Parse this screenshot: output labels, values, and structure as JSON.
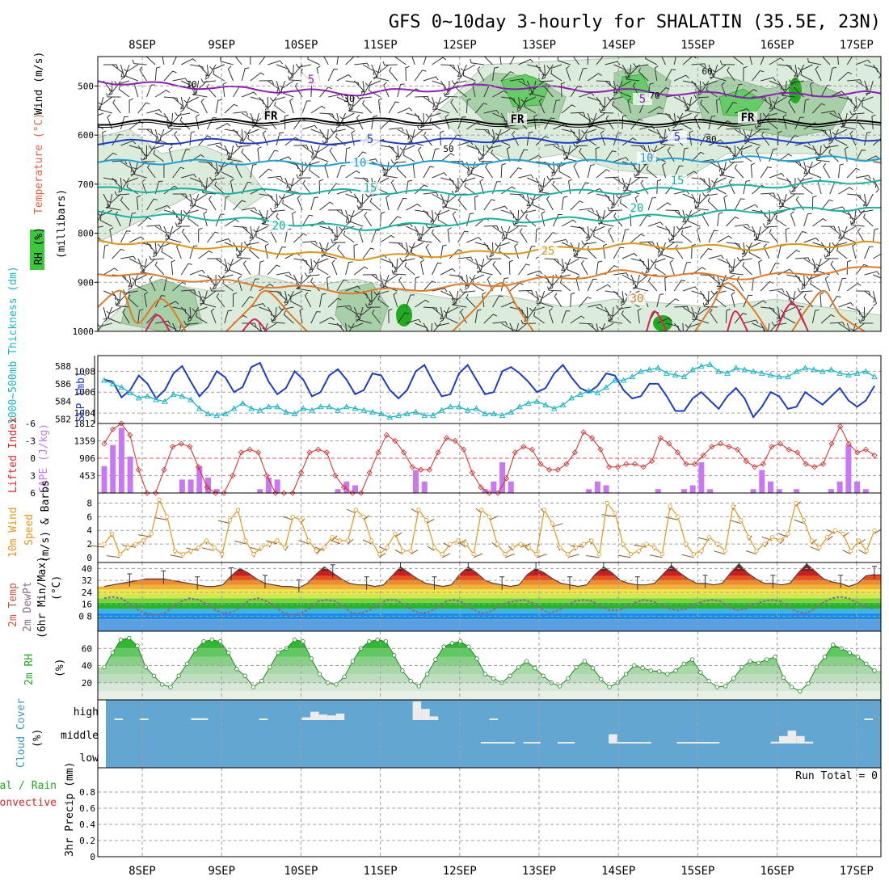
{
  "title": "GFS 0~10day 3-hourly for SHALATIN (35.5E, 23N)",
  "days": [
    "8SEP",
    "9SEP",
    "10SEP",
    "11SEP",
    "12SEP",
    "13SEP",
    "14SEP",
    "15SEP",
    "16SEP",
    "17SEP"
  ],
  "colors": {
    "rh_green": "#3cc83c",
    "temp_purple": "#8c1eb4",
    "temp_blue": "#1e3cc8",
    "temp_cyan": "#1ea0d2",
    "temp_teal": "#14b4a0",
    "temp_orange": "#dc9614",
    "cloud_bg": "#64a6d2",
    "slp": "#1e3cc8",
    "thick": "#1eb4c8",
    "li": "#dc2828",
    "cape": "#c878f0",
    "wind": "#e6961e"
  },
  "chart_data": [
    {
      "type": "contour",
      "id": "upper_air",
      "ylabel_parts": [
        "Wind (m/s)",
        "Temperature (°C)",
        "RH (%)",
        "(millibars)"
      ],
      "yticks": [
        500,
        600,
        700,
        800,
        900,
        1000
      ],
      "ylim": [
        440,
        1000
      ],
      "temperature_contours": [
        {
          "value": 5,
          "label": "5",
          "levels_mb": [
            490,
            505,
            515,
            500,
            510,
            520,
            515
          ]
        },
        {
          "value": 0,
          "label": "FR",
          "levels_mb": [
            575,
            572,
            570,
            573,
            575,
            572,
            575
          ]
        },
        {
          "value": 5,
          "label": "5",
          "levels_mb": [
            615,
            612,
            615,
            610,
            612,
            612,
            610
          ]
        },
        {
          "value": 10,
          "label": "10",
          "levels_mb": [
            655,
            655,
            660,
            655,
            655,
            648,
            648
          ]
        },
        {
          "value": 15,
          "label": "15",
          "levels_mb": [
            710,
            715,
            715,
            718,
            715,
            705,
            692
          ]
        },
        {
          "value": 20,
          "label": "20",
          "levels_mb": [
            760,
            770,
            790,
            775,
            770,
            755,
            748
          ]
        },
        {
          "value": 25,
          "label": "25",
          "levels_mb": [
            815,
            830,
            850,
            840,
            825,
            830,
            820
          ]
        },
        {
          "value": 30,
          "label": "30",
          "levels_mb": [
            880,
            900,
            920,
            905,
            880,
            890,
            870
          ]
        }
      ],
      "rh_contour_labels": [
        "10",
        "30",
        "50",
        "60",
        "70",
        "80"
      ],
      "annotations": [
        "5",
        "FR",
        "5",
        "10",
        "15",
        "20",
        "25",
        "30"
      ]
    },
    {
      "type": "line",
      "id": "slp_thickness",
      "left_label": "1000~500mb Thickness (dm)",
      "right_label": "SLP (mb)",
      "left_ticks": [
        "588",
        "586",
        "584",
        "582"
      ],
      "right_ticks": [
        "1008",
        "1006",
        "1004"
      ],
      "series": [
        {
          "name": "SLP (mb)",
          "ylim": [
            1003,
            1009.5
          ],
          "values": [
            1007.2,
            1007.0,
            1005.5,
            1006.2,
            1007.6,
            1006.8,
            1005.4,
            1006.2,
            1007.8,
            1008.5,
            1007.0,
            1005.6,
            1006.5,
            1008.0,
            1007.4,
            1006.0,
            1006.5,
            1008.4,
            1008.8,
            1007.0,
            1005.8,
            1006.4,
            1008.0,
            1007.2,
            1005.6,
            1006.0,
            1007.6,
            1008.2,
            1007.2,
            1005.8,
            1006.2,
            1007.8,
            1007.6,
            1006.2,
            1005.4,
            1006.2,
            1008.0,
            1008.6,
            1007.0,
            1005.6,
            1005.8,
            1007.8,
            1008.6,
            1007.2,
            1005.8,
            1006.0,
            1008.0,
            1008.4,
            1007.8,
            1007.0,
            1006.0,
            1006.4,
            1007.8,
            1008.6,
            1007.4,
            1006.4,
            1006.0,
            1006.6,
            1007.8,
            1007.6,
            1006.2,
            1005.4,
            1005.6,
            1006.8,
            1006.8,
            1005.6,
            1004.2,
            1004.2,
            1005.4,
            1006.0,
            1005.2,
            1004.4,
            1005.6,
            1006.4,
            1005.4,
            1003.6,
            1004.6,
            1006.0,
            1005.6,
            1004.4,
            1004.6,
            1006.0,
            1005.4,
            1004.8,
            1005.6,
            1006.4,
            1005.2,
            1004.6,
            1005.2,
            1006.6
          ]
        },
        {
          "name": "1000~500mb Thickness (dm)",
          "ylim": [
            581.5,
            589.2
          ],
          "values": [
            586.4,
            586.0,
            585.6,
            585.0,
            584.4,
            584.6,
            584.2,
            584.0,
            584.8,
            584.6,
            584.2,
            583.2,
            582.6,
            582.4,
            582.6,
            583.2,
            583.8,
            583.2,
            583.0,
            583.4,
            583.4,
            582.8,
            582.6,
            583.2,
            583.0,
            583.4,
            583.4,
            583.0,
            583.4,
            583.2,
            583.0,
            582.8,
            582.6,
            582.2,
            582.4,
            582.6,
            582.8,
            582.4,
            582.4,
            583.0,
            583.4,
            583.4,
            583.0,
            583.2,
            582.6,
            582.6,
            582.4,
            582.8,
            583.4,
            583.8,
            584.0,
            583.6,
            583.2,
            583.6,
            584.4,
            584.8,
            585.2,
            585.0,
            585.6,
            586.4,
            586.4,
            586.8,
            587.4,
            587.6,
            587.8,
            587.2,
            587.0,
            586.8,
            587.6,
            588.0,
            588.2,
            587.4,
            587.2,
            587.8,
            587.6,
            587.4,
            587.2,
            587.0,
            586.8,
            586.8,
            587.4,
            587.8,
            587.6,
            587.4,
            587.6,
            587.2,
            587.0,
            587.2,
            587.4,
            586.8
          ]
        }
      ]
    },
    {
      "type": "bar+line",
      "id": "lifted_cape",
      "left_label": "Lifted Index",
      "right_label": "CAPE (J/kg)",
      "li_ticks": [
        "-6",
        "-3",
        "0",
        "3",
        "6"
      ],
      "cape_ticks": [
        "1812",
        "1359",
        "906",
        "453"
      ],
      "series": [
        {
          "name": "Lifted Index",
          "ylim": [
            6,
            -6
          ],
          "values": [
            -2.5,
            -5.0,
            -6.0,
            -4.0,
            2.0,
            6.0,
            6.0,
            2.0,
            -2.0,
            -2.5,
            -2.0,
            1.5,
            5.0,
            6.0,
            6.0,
            3.0,
            -1.0,
            -1.5,
            -1.0,
            3.0,
            6.0,
            6.0,
            6.0,
            2.5,
            -1.0,
            -1.5,
            -1.0,
            3.0,
            5.0,
            6.0,
            6.0,
            2.5,
            -1.0,
            -4.0,
            -3.0,
            -1.0,
            1.5,
            2.0,
            2.0,
            -1.0,
            -3.5,
            -3.0,
            -1.5,
            2.5,
            5.0,
            6.0,
            6.0,
            3.5,
            -1.0,
            -2.0,
            -1.5,
            1.0,
            2.0,
            2.0,
            1.0,
            -1.0,
            -4.5,
            -3.5,
            -1.5,
            1.5,
            1.5,
            1.0,
            1.0,
            1.5,
            0.5,
            -3.5,
            -2.5,
            -1.0,
            1.0,
            1.0,
            -0.5,
            -2.0,
            -2.5,
            -2.0,
            -1.5,
            0.5,
            1.5,
            1.0,
            -2.0,
            -2.5,
            -1.5,
            -1.0,
            1.0,
            1.5,
            1.0,
            -2.5,
            -5.5,
            -2.5,
            -1.0,
            -1.5,
            -0.5
          ]
        },
        {
          "name": "CAPE (J/kg)",
          "ylim": [
            0,
            1812
          ],
          "values": [
            700,
            1250,
            1700,
            950,
            0,
            0,
            0,
            0,
            0,
            350,
            350,
            700,
            400,
            100,
            0,
            0,
            0,
            0,
            100,
            400,
            350,
            0,
            0,
            0,
            0,
            0,
            0,
            100,
            300,
            200,
            0,
            0,
            0,
            0,
            0,
            0,
            600,
            300,
            0,
            0,
            0,
            0,
            0,
            0,
            100,
            300,
            800,
            300,
            0,
            0,
            0,
            0,
            0,
            0,
            0,
            0,
            100,
            300,
            200,
            0,
            0,
            0,
            0,
            0,
            100,
            0,
            0,
            100,
            200,
            800,
            100,
            0,
            0,
            0,
            0,
            100,
            600,
            300,
            100,
            0,
            100,
            0,
            0,
            0,
            100,
            300,
            1250,
            300,
            100,
            0
          ]
        }
      ]
    },
    {
      "type": "line",
      "id": "wind10m",
      "ylabel": "10m Wind Speed (m/s) & Barbs",
      "ylabel_parts": [
        "10m Wind",
        "Speed",
        "(m/s) & Barbs"
      ],
      "yticks": [
        0,
        2,
        4,
        6,
        8
      ],
      "ylim": [
        0,
        9
      ],
      "values": [
        2,
        3.5,
        0.5,
        1.5,
        2,
        2.5,
        3.5,
        8.5,
        6,
        1,
        0.5,
        1,
        1.5,
        2.5,
        1.5,
        0.5,
        5.5,
        7,
        2.5,
        0.5,
        1.5,
        2,
        2.5,
        1.5,
        6,
        5.5,
        2.5,
        1,
        1.5,
        3,
        2.5,
        2.5,
        7,
        6,
        2.5,
        0.5,
        1.5,
        3.5,
        1,
        1,
        7,
        5.5,
        1.5,
        0.5,
        2,
        2.5,
        2,
        0.5,
        7,
        6,
        2,
        0.5,
        1.5,
        2,
        1.5,
        0.5,
        7,
        5,
        1.5,
        0.5,
        1.5,
        2,
        2.5,
        0.5,
        8,
        6.5,
        2,
        0.5,
        1,
        2,
        1.5,
        0.5,
        7.5,
        6,
        2,
        0.5,
        1,
        3,
        2,
        1,
        7.5,
        5.5,
        3,
        1,
        2,
        3,
        2.5,
        3.5,
        8,
        5.5,
        2.5,
        1.5,
        3,
        4,
        3.5,
        1,
        2.5,
        1,
        4
      ]
    },
    {
      "type": "area",
      "id": "temp2m",
      "ylabel_parts": [
        "2m Temp",
        "2m DewPt",
        "(6hr Min/Max)",
        "(°C)"
      ],
      "yticks": [
        8,
        16,
        24,
        32,
        40
      ],
      "ylim": [
        -2,
        44
      ],
      "temperature": [
        28,
        29,
        30,
        31,
        32,
        33,
        33,
        33,
        32,
        31,
        30,
        29,
        28,
        28,
        29,
        35,
        40,
        37,
        33,
        30,
        29,
        28,
        28,
        27,
        30,
        36,
        41,
        37,
        33,
        30,
        29,
        29,
        28,
        29,
        35,
        41,
        37,
        33,
        30,
        29,
        28,
        29,
        36,
        41,
        37,
        32,
        30,
        29,
        28,
        29,
        36,
        40,
        37,
        33,
        30,
        29,
        28,
        29,
        36,
        41,
        37,
        32,
        30,
        29,
        29,
        30,
        36,
        42,
        37,
        33,
        30,
        30,
        29,
        30,
        37,
        43,
        37,
        33,
        30,
        30,
        29,
        30,
        37,
        43,
        38,
        33,
        31,
        30,
        28,
        30,
        35,
        36
      ],
      "dewpoint": [
        20,
        21,
        20,
        16,
        12,
        10,
        9,
        10,
        14,
        18,
        20,
        19,
        16,
        12,
        10,
        11,
        14,
        19,
        20,
        18,
        14,
        10,
        9,
        10,
        13,
        18,
        19,
        18,
        14,
        10,
        10,
        12,
        15,
        19,
        19,
        16,
        12,
        10,
        11,
        14,
        18,
        19,
        17,
        13,
        10,
        11,
        14,
        17,
        18,
        19,
        17,
        13,
        10,
        12,
        15,
        18,
        19,
        18,
        15,
        12,
        12,
        14,
        17,
        19,
        18,
        16,
        13,
        12,
        13,
        16,
        18,
        19,
        18,
        14,
        12,
        13,
        16,
        18,
        19,
        18,
        14,
        11,
        10,
        13,
        17,
        20,
        21,
        20,
        17,
        14,
        13
      ],
      "annotations": [
        "0"
      ]
    },
    {
      "type": "area",
      "id": "rh2m",
      "ylabel_parts": [
        "2m RH",
        "(%)"
      ],
      "yticks": [
        20,
        40,
        60
      ],
      "ylim": [
        0,
        80
      ],
      "values": [
        38,
        55,
        70,
        72,
        63,
        38,
        28,
        18,
        15,
        28,
        42,
        58,
        68,
        70,
        68,
        55,
        36,
        28,
        15,
        22,
        38,
        55,
        60,
        70,
        68,
        48,
        30,
        20,
        18,
        27,
        45,
        60,
        68,
        70,
        68,
        52,
        34,
        22,
        16,
        30,
        47,
        62,
        66,
        68,
        62,
        48,
        30,
        25,
        20,
        28,
        38,
        45,
        37,
        28,
        20,
        16,
        25,
        38,
        45,
        37,
        24,
        15,
        20,
        30,
        40,
        37,
        34,
        33,
        30,
        34,
        42,
        47,
        32,
        22,
        15,
        16,
        25,
        38,
        45,
        43,
        47,
        50,
        26,
        15,
        10,
        19,
        38,
        50,
        64,
        60,
        55,
        50,
        42,
        34
      ]
    },
    {
      "type": "bar",
      "id": "cloud",
      "ylabel_parts": [
        "Cloud Cover",
        "(%)"
      ],
      "categories": [
        "high",
        "middle",
        "low"
      ],
      "high": [
        0,
        5,
        0,
        0,
        5,
        0,
        0,
        0,
        0,
        0,
        10,
        10,
        0,
        0,
        0,
        0,
        0,
        0,
        5,
        0,
        0,
        0,
        0,
        15,
        45,
        30,
        25,
        35,
        0,
        0,
        0,
        0,
        0,
        0,
        0,
        0,
        100,
        60,
        20,
        0,
        0,
        0,
        0,
        0,
        0,
        5,
        0,
        0,
        0,
        0,
        0,
        0,
        0,
        0,
        0,
        0,
        0,
        0,
        0,
        0,
        0,
        0,
        0,
        0,
        0,
        0,
        0,
        0,
        0,
        0,
        0,
        0,
        0,
        0,
        0,
        0,
        0,
        0,
        0,
        0,
        0,
        0,
        0,
        0,
        0,
        0,
        0,
        0,
        0,
        5
      ],
      "middle": [
        0,
        0,
        0,
        0,
        0,
        0,
        0,
        0,
        0,
        0,
        0,
        0,
        0,
        0,
        0,
        0,
        0,
        0,
        0,
        0,
        0,
        0,
        0,
        0,
        0,
        0,
        0,
        0,
        0,
        0,
        0,
        0,
        0,
        0,
        0,
        0,
        0,
        0,
        0,
        0,
        0,
        0,
        0,
        0,
        5,
        5,
        5,
        5,
        0,
        5,
        5,
        0,
        0,
        5,
        5,
        0,
        0,
        0,
        0,
        50,
        5,
        5,
        5,
        5,
        0,
        0,
        0,
        5,
        5,
        5,
        5,
        5,
        0,
        0,
        0,
        0,
        0,
        0,
        10,
        40,
        70,
        40,
        10,
        0,
        0,
        0,
        0,
        0,
        0,
        0
      ]
    },
    {
      "type": "bar",
      "id": "precip",
      "ylabel_parts": [
        "Total / Rain",
        "Convective",
        "3hr Precip (mm)"
      ],
      "yticks": [
        "0",
        "0.2",
        "0.4",
        "0.6",
        "0.8"
      ],
      "ylim": [
        0,
        1
      ],
      "run_total_label": "Run Total = 0",
      "values": []
    }
  ]
}
